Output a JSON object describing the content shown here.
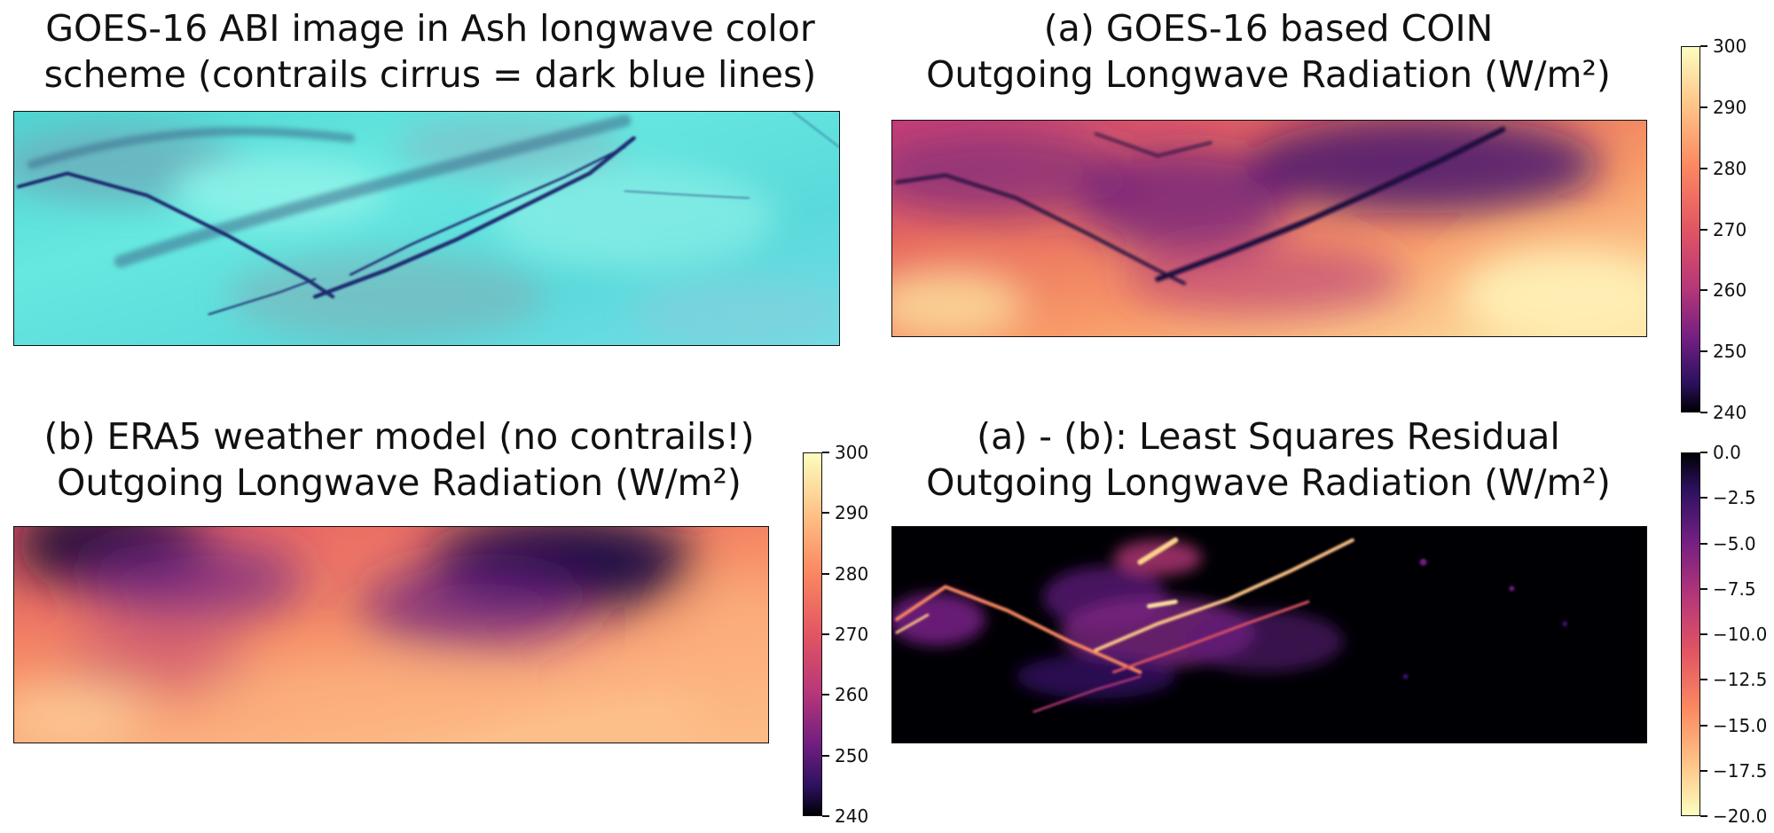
{
  "panels": {
    "goes_ash": {
      "title_lines": [
        "GOES-16 ABI image in Ash longwave color",
        "scheme (contrails cirrus = dark blue lines)"
      ]
    },
    "coin_olr": {
      "title_lines": [
        "(a) GOES-16 based COIN",
        "Outgoing Longwave Radiation (W/m²)"
      ],
      "colorbar": {
        "min": 240,
        "max": 300,
        "ticks": [
          "300",
          "290",
          "280",
          "270",
          "260",
          "250",
          "240"
        ]
      }
    },
    "era5_olr": {
      "title_lines": [
        "(b) ERA5 weather model (no contrails!)",
        "Outgoing Longwave Radiation (W/m²)"
      ],
      "colorbar": {
        "min": 240,
        "max": 300,
        "ticks": [
          "300",
          "290",
          "280",
          "270",
          "260",
          "250",
          "240"
        ]
      }
    },
    "residual": {
      "title_lines": [
        "(a) - (b): Least Squares Residual",
        "Outgoing Longwave Radiation (W/m²)"
      ],
      "colorbar": {
        "min": -20.0,
        "max": 0.0,
        "ticks": [
          "0.0",
          "−2.5",
          "−5.0",
          "−7.5",
          "−10.0",
          "−12.5",
          "−15.0",
          "−17.5",
          "−20.0"
        ]
      }
    }
  },
  "colors": {
    "ash_background": "#5fe3dc",
    "contrail_dark_blue": "#1c2a6e",
    "magma_dark": "#000004",
    "magma_purple": "#721f81",
    "magma_pink": "#e25563",
    "magma_orange": "#fb8761",
    "magma_light": "#fcfdbf"
  }
}
